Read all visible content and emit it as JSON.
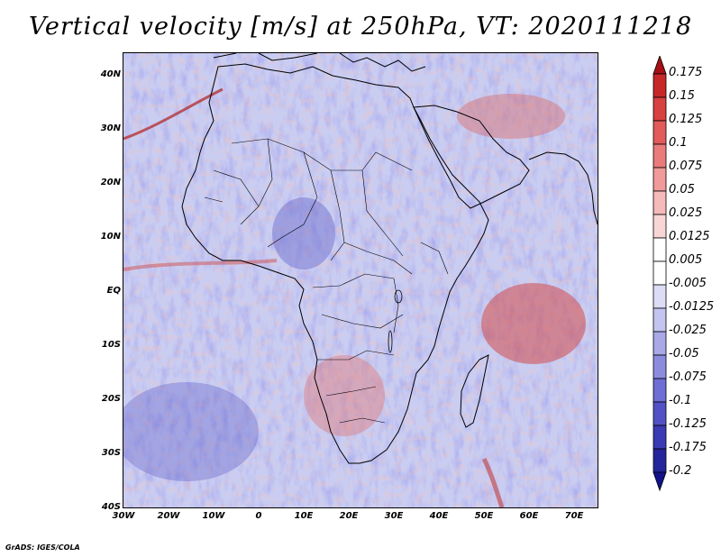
{
  "title": "Vertical velocity [m/s] at 250hPa, VT: 2020111218",
  "credit": "GrADS: IGES/COLA",
  "y_axis_labels": [
    "40N",
    "30N",
    "20N",
    "10N",
    "EQ",
    "10S",
    "20S",
    "30S",
    "40S"
  ],
  "x_axis_labels": [
    "30W",
    "20W",
    "10W",
    "0",
    "10E",
    "20E",
    "30E",
    "40E",
    "50E",
    "60E",
    "70E"
  ],
  "colorbar": {
    "labels": [
      "0.175",
      "0.15",
      "0.125",
      "0.1",
      "0.075",
      "0.05",
      "0.025",
      "0.0125",
      "0.005",
      "-0.005",
      "-0.0125",
      "-0.025",
      "-0.05",
      "-0.075",
      "-0.1",
      "-0.125",
      "-0.175",
      "-0.2"
    ],
    "colors": [
      "#a50f15",
      "#c62828",
      "#d94040",
      "#e25a5a",
      "#ea7b7b",
      "#f09a9a",
      "#f5baba",
      "#f9d6d6",
      "#ffffff",
      "#ffffff",
      "#dcdcf6",
      "#c4c4f0",
      "#a9a9e8",
      "#8c8cdf",
      "#6e6ed4",
      "#5252c6",
      "#3a3ab4",
      "#24249c",
      "#12128a"
    ]
  }
}
